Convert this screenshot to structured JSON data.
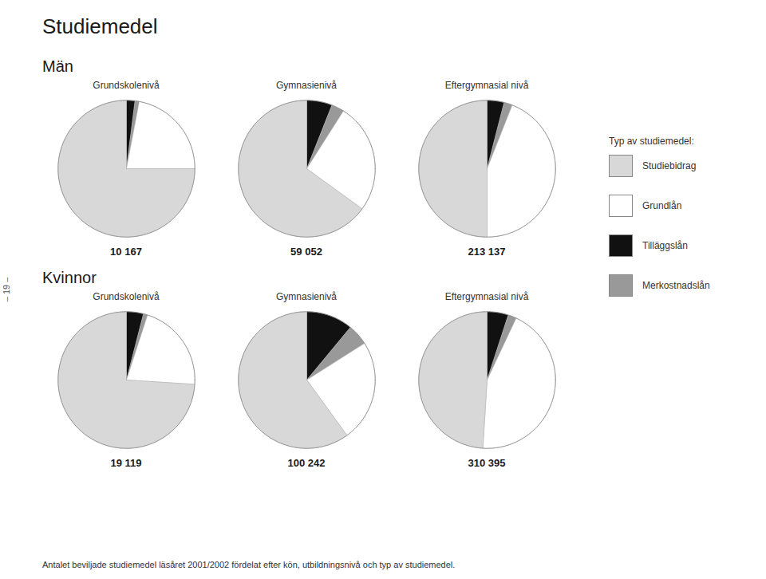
{
  "title": "Studiemedel",
  "legend_title": "Typ av studiemedel:",
  "legend_labels": [
    "Studiebidrag",
    "Grundlån",
    "Tilläggslån",
    "Merkostnadslån"
  ],
  "annotations": [
    "– 19 –",
    "Antalet beviljade studiemedel läsåret 2001/2002 fördelat efter kön, utbildningsnivå och typ av studiemedel."
  ],
  "chart_data": [
    {
      "type": "pie",
      "title": "Grundskolenivå",
      "subtitle": "Män",
      "categories": [
        "Tilläggslån",
        "Merkostnadslån",
        "Grundlån",
        "Studiebidrag"
      ],
      "values": [
        2,
        1,
        22,
        75
      ],
      "colors": [
        "#111111",
        "#999999",
        "#ffffff",
        "#d8d8d8"
      ],
      "annotations": [
        "10 167"
      ]
    },
    {
      "type": "pie",
      "title": "Gymnasienivå",
      "subtitle": "Män",
      "categories": [
        "Tilläggslån",
        "Merkostnadslån",
        "Grundlån",
        "Studiebidrag"
      ],
      "values": [
        6,
        3,
        26,
        65
      ],
      "colors": [
        "#111111",
        "#999999",
        "#ffffff",
        "#d8d8d8"
      ],
      "annotations": [
        "59 052"
      ]
    },
    {
      "type": "pie",
      "title": "Eftergymnasial nivå",
      "subtitle": "Män",
      "categories": [
        "Tilläggslån",
        "Merkostnadslån",
        "Grundlån",
        "Studiebidrag"
      ],
      "values": [
        4,
        2,
        44,
        50
      ],
      "colors": [
        "#111111",
        "#999999",
        "#ffffff",
        "#d8d8d8"
      ],
      "annotations": [
        "213 137"
      ]
    },
    {
      "type": "pie",
      "title": "Grundskolenivå",
      "subtitle": "Kvinnor",
      "categories": [
        "Tilläggslån",
        "Merkostnadslån",
        "Grundlån",
        "Studiebidrag"
      ],
      "values": [
        4,
        1,
        21,
        74
      ],
      "colors": [
        "#111111",
        "#999999",
        "#ffffff",
        "#d8d8d8"
      ],
      "annotations": [
        "19 119"
      ]
    },
    {
      "type": "pie",
      "title": "Gymnasienivå",
      "subtitle": "Kvinnor",
      "categories": [
        "Tilläggslån",
        "Merkostnadslån",
        "Grundlån",
        "Studiebidrag"
      ],
      "values": [
        11,
        5,
        24,
        60
      ],
      "colors": [
        "#111111",
        "#999999",
        "#ffffff",
        "#d8d8d8"
      ],
      "annotations": [
        "100 242"
      ]
    },
    {
      "type": "pie",
      "title": "Eftergymnasial nivå",
      "subtitle": "Kvinnor",
      "categories": [
        "Tilläggslån",
        "Merkostnadslån",
        "Grundlån",
        "Studiebidrag"
      ],
      "values": [
        5,
        2,
        44,
        49
      ],
      "colors": [
        "#111111",
        "#999999",
        "#ffffff",
        "#d8d8d8"
      ],
      "annotations": [
        "310 395"
      ]
    }
  ]
}
